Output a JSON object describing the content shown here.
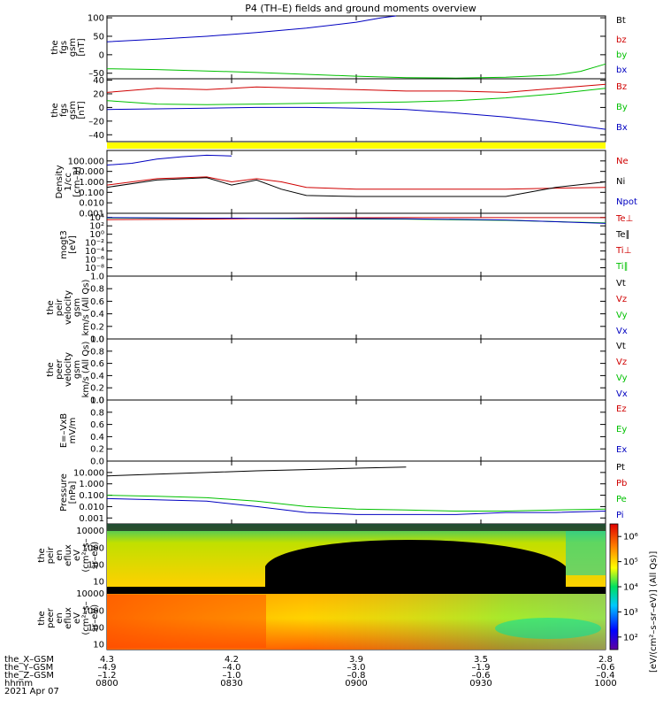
{
  "title": "P4 (TH–E) fields and ground moments overview",
  "footer": {
    "row_labels": [
      "the_X–GSM",
      "the_Y–GSM",
      "the_Z–GSM",
      "hhmm",
      "2021 Apr 07"
    ],
    "columns": [
      {
        "x": "4.3",
        "y": "–4.9",
        "z": "–1.2",
        "hhmm": "0800"
      },
      {
        "x": "4.2",
        "y": "–4.0",
        "z": "–1.0",
        "hhmm": "0830"
      },
      {
        "x": "3.9",
        "y": "–3.0",
        "z": "–0.8",
        "hhmm": "0900"
      },
      {
        "x": "3.5",
        "y": "–1.9",
        "z": "–0.6",
        "hhmm": "0930"
      },
      {
        "x": "2.8",
        "y": "–0.6",
        "z": "–0.4",
        "hhmm": "1000"
      }
    ]
  },
  "colorbar": {
    "ticks": [
      "10²",
      "10³",
      "10⁴",
      "10⁵",
      "10⁶"
    ],
    "label": "[eV/(cm²–s–sr–eV)] (All Qs)]"
  },
  "colors": {
    "black": "#000000",
    "red": "#d00000",
    "green": "#00c000",
    "blue": "#0000c0",
    "yellow": "#ffff00"
  },
  "chart_data": [
    {
      "type": "line",
      "ylabel": [
        "the",
        "fgs",
        "gsm",
        "[nT]"
      ],
      "yticks": [
        {
          "v": 100,
          "label": "100"
        },
        {
          "v": 50,
          "label": "50"
        },
        {
          "v": 0,
          "label": "0"
        },
        {
          "v": -50,
          "label": "–50"
        }
      ],
      "ylim": [
        -65,
        105
      ],
      "x": [
        "0800",
        "0830",
        "0900",
        "0930",
        "1000"
      ],
      "legend": [
        {
          "name": "Bt",
          "color": "black"
        },
        {
          "name": "bz",
          "color": "red"
        },
        {
          "name": "by",
          "color": "green"
        },
        {
          "name": "bx",
          "color": "blue"
        }
      ],
      "series": [
        {
          "name": "bx",
          "color": "blue",
          "points": [
            [
              0,
              35
            ],
            [
              0.1,
              42
            ],
            [
              0.2,
              50
            ],
            [
              0.3,
              60
            ],
            [
              0.4,
              72
            ],
            [
              0.5,
              88
            ],
            [
              0.55,
              100
            ],
            [
              0.58,
              108
            ]
          ]
        },
        {
          "name": "by",
          "color": "green",
          "points": [
            [
              0,
              -38
            ],
            [
              0.1,
              -40
            ],
            [
              0.2,
              -44
            ],
            [
              0.3,
              -48
            ],
            [
              0.4,
              -53
            ],
            [
              0.5,
              -58
            ],
            [
              0.6,
              -62
            ],
            [
              0.7,
              -63
            ],
            [
              0.8,
              -61
            ],
            [
              0.9,
              -55
            ],
            [
              0.95,
              -45
            ],
            [
              1.0,
              -25
            ]
          ]
        }
      ]
    },
    {
      "type": "line",
      "ylabel": [
        "the",
        "fgs",
        "gsm",
        "[nT]"
      ],
      "yticks": [
        {
          "v": 40,
          "label": "40"
        },
        {
          "v": 20,
          "label": "20"
        },
        {
          "v": 0,
          "label": "0"
        },
        {
          "v": -20,
          "label": "–20"
        },
        {
          "v": -40,
          "label": "–40"
        }
      ],
      "ylim": [
        -50,
        42
      ],
      "legend": [
        {
          "name": "Bz",
          "color": "red"
        },
        {
          "name": "By",
          "color": "green"
        },
        {
          "name": "Bx",
          "color": "blue"
        }
      ],
      "series": [
        {
          "name": "Bz",
          "color": "red",
          "points": [
            [
              0,
              22
            ],
            [
              0.1,
              28
            ],
            [
              0.2,
              26
            ],
            [
              0.3,
              30
            ],
            [
              0.4,
              28
            ],
            [
              0.5,
              26
            ],
            [
              0.6,
              24
            ],
            [
              0.7,
              24
            ],
            [
              0.8,
              22
            ],
            [
              0.9,
              28
            ],
            [
              1.0,
              34
            ]
          ]
        },
        {
          "name": "By",
          "color": "green",
          "points": [
            [
              0,
              10
            ],
            [
              0.1,
              5
            ],
            [
              0.2,
              4
            ],
            [
              0.3,
              5
            ],
            [
              0.4,
              6
            ],
            [
              0.5,
              7
            ],
            [
              0.6,
              8
            ],
            [
              0.7,
              10
            ],
            [
              0.8,
              14
            ],
            [
              0.9,
              20
            ],
            [
              1.0,
              28
            ]
          ]
        },
        {
          "name": "Bx",
          "color": "blue",
          "points": [
            [
              0,
              -3
            ],
            [
              0.1,
              -2
            ],
            [
              0.2,
              -1
            ],
            [
              0.3,
              0
            ],
            [
              0.4,
              0
            ],
            [
              0.5,
              -1
            ],
            [
              0.6,
              -3
            ],
            [
              0.7,
              -8
            ],
            [
              0.8,
              -14
            ],
            [
              0.9,
              -22
            ],
            [
              1.0,
              -32
            ]
          ]
        }
      ]
    },
    {
      "type": "line",
      "ylabel": [
        "Density",
        "1/cc",
        "[cm–3]"
      ],
      "yscale": "log",
      "yticks": [
        {
          "v": 100,
          "label": "100.000"
        },
        {
          "v": 10,
          "label": "10.000"
        },
        {
          "v": 1,
          "label": "1.000"
        },
        {
          "v": 0.1,
          "label": "0.100"
        },
        {
          "v": 0.01,
          "label": "0.010"
        },
        {
          "v": 0.001,
          "label": "0.001"
        }
      ],
      "ylim": [
        0.001,
        1000
      ],
      "legend": [
        {
          "name": "Ne",
          "color": "red"
        },
        {
          "name": "Ni",
          "color": "black"
        },
        {
          "name": "Npot",
          "color": "blue"
        }
      ],
      "series": [
        {
          "name": "Npot",
          "color": "blue",
          "points": [
            [
              0,
              40
            ],
            [
              0.05,
              60
            ],
            [
              0.1,
              150
            ],
            [
              0.15,
              250
            ],
            [
              0.2,
              350
            ],
            [
              0.25,
              300
            ]
          ]
        },
        {
          "name": "Ne",
          "color": "red",
          "points": [
            [
              0,
              0.5
            ],
            [
              0.1,
              2
            ],
            [
              0.2,
              3
            ],
            [
              0.25,
              1
            ],
            [
              0.3,
              2
            ],
            [
              0.35,
              1
            ],
            [
              0.4,
              0.3
            ],
            [
              0.5,
              0.2
            ],
            [
              0.6,
              0.2
            ],
            [
              0.7,
              0.2
            ],
            [
              0.8,
              0.2
            ],
            [
              0.9,
              0.25
            ],
            [
              1.0,
              0.3
            ]
          ]
        },
        {
          "name": "Ni",
          "color": "black",
          "points": [
            [
              0,
              0.3
            ],
            [
              0.1,
              1.5
            ],
            [
              0.2,
              2.5
            ],
            [
              0.25,
              0.5
            ],
            [
              0.3,
              1.5
            ],
            [
              0.35,
              0.2
            ],
            [
              0.4,
              0.05
            ],
            [
              0.5,
              0.04
            ],
            [
              0.6,
              0.04
            ],
            [
              0.7,
              0.04
            ],
            [
              0.8,
              0.04
            ],
            [
              0.9,
              0.3
            ],
            [
              1.0,
              1.0
            ]
          ]
        }
      ]
    },
    {
      "type": "line",
      "ylabel": [
        "mogt3",
        "[eV]"
      ],
      "yscale": "log",
      "yticks": [
        {
          "v": 10000,
          "label": "10⁴"
        },
        {
          "v": 100,
          "label": "10²"
        },
        {
          "v": 1,
          "label": "10⁰"
        },
        {
          "v": 0.01,
          "label": "10⁻²"
        },
        {
          "v": 0.0001,
          "label": "10⁻⁴"
        },
        {
          "v": 1e-06,
          "label": "10⁻⁶"
        },
        {
          "v": 1e-08,
          "label": "10⁻⁸"
        }
      ],
      "ylim": [
        1e-10,
        100000
      ],
      "legend": [
        {
          "name": "Te⊥",
          "color": "red"
        },
        {
          "name": "Te∥",
          "color": "black"
        },
        {
          "name": "Ti⊥",
          "color": "red"
        },
        {
          "name": "Ti∥",
          "color": "green"
        }
      ],
      "series": [
        {
          "name": "Ti∥",
          "color": "green",
          "points": [
            [
              0,
              8000
            ],
            [
              0.2,
              6000
            ],
            [
              0.4,
              5000
            ],
            [
              0.6,
              4000
            ],
            [
              0.8,
              2000
            ],
            [
              1.0,
              500
            ]
          ]
        },
        {
          "name": "Te⊥",
          "color": "red",
          "points": [
            [
              0,
              3000
            ],
            [
              0.2,
              4000
            ],
            [
              0.4,
              8000
            ],
            [
              0.6,
              9000
            ],
            [
              0.8,
              9000
            ],
            [
              1.0,
              9000
            ]
          ]
        },
        {
          "name": "Ti⊥",
          "color": "blue",
          "points": [
            [
              0,
              9000
            ],
            [
              0.2,
              7000
            ],
            [
              0.4,
              6000
            ],
            [
              0.6,
              5000
            ],
            [
              0.8,
              2500
            ],
            [
              1.0,
              400
            ]
          ]
        }
      ]
    },
    {
      "type": "line",
      "ylabel": [
        "the",
        "peir",
        "velocity",
        "gsm",
        "km/s (All Qs)"
      ],
      "yticks": [
        {
          "v": 1,
          "label": "1.0"
        },
        {
          "v": 0.8,
          "label": "0.8"
        },
        {
          "v": 0.6,
          "label": "0.6"
        },
        {
          "v": 0.4,
          "label": "0.4"
        },
        {
          "v": 0.2,
          "label": "0.2"
        },
        {
          "v": 0,
          "label": "0.0"
        }
      ],
      "ylim": [
        0,
        1
      ],
      "legend": [
        {
          "name": "Vt",
          "color": "black"
        },
        {
          "name": "Vz",
          "color": "red"
        },
        {
          "name": "Vy",
          "color": "green"
        },
        {
          "name": "Vx",
          "color": "blue"
        }
      ],
      "series": []
    },
    {
      "type": "line",
      "ylabel": [
        "the",
        "peer",
        "velocity",
        "gsm",
        "km/s (All Qs)"
      ],
      "yticks": [
        {
          "v": 1,
          "label": "1.0"
        },
        {
          "v": 0.8,
          "label": "0.8"
        },
        {
          "v": 0.6,
          "label": "0.6"
        },
        {
          "v": 0.4,
          "label": "0.4"
        },
        {
          "v": 0.2,
          "label": "0.2"
        },
        {
          "v": 0,
          "label": "0.0"
        }
      ],
      "ylim": [
        0,
        1
      ],
      "legend": [
        {
          "name": "Vt",
          "color": "black"
        },
        {
          "name": "Vz",
          "color": "red"
        },
        {
          "name": "Vy",
          "color": "green"
        },
        {
          "name": "Vx",
          "color": "blue"
        }
      ],
      "series": []
    },
    {
      "type": "line",
      "ylabel": [
        "E=–VxB",
        "mV/m"
      ],
      "yticks": [
        {
          "v": 1,
          "label": "1.0"
        },
        {
          "v": 0.8,
          "label": "0.8"
        },
        {
          "v": 0.6,
          "label": "0.6"
        },
        {
          "v": 0.4,
          "label": "0.4"
        },
        {
          "v": 0.2,
          "label": "0.2"
        },
        {
          "v": 0,
          "label": "0.0"
        }
      ],
      "ylim": [
        0,
        1
      ],
      "legend": [
        {
          "name": "Ez",
          "color": "red"
        },
        {
          "name": "Ey",
          "color": "green"
        },
        {
          "name": "Ex",
          "color": "blue"
        }
      ],
      "series": []
    },
    {
      "type": "line",
      "ylabel": [
        "Pressure",
        "[nPa]"
      ],
      "yscale": "log",
      "yticks": [
        {
          "v": 10,
          "label": "10.000"
        },
        {
          "v": 1,
          "label": "1.000"
        },
        {
          "v": 0.1,
          "label": "0.100"
        },
        {
          "v": 0.01,
          "label": "0.010"
        },
        {
          "v": 0.001,
          "label": "0.001"
        }
      ],
      "ylim": [
        0.0003,
        100
      ],
      "legend": [
        {
          "name": "Pt",
          "color": "black"
        },
        {
          "name": "Pb",
          "color": "red"
        },
        {
          "name": "Pe",
          "color": "green"
        },
        {
          "name": "Pi",
          "color": "blue"
        }
      ],
      "series": [
        {
          "name": "Pt",
          "color": "black",
          "points": [
            [
              0,
              5
            ],
            [
              0.1,
              7
            ],
            [
              0.2,
              10
            ],
            [
              0.3,
              14
            ],
            [
              0.4,
              18
            ],
            [
              0.5,
              24
            ],
            [
              0.6,
              30
            ]
          ]
        },
        {
          "name": "Pe",
          "color": "green",
          "points": [
            [
              0,
              0.1
            ],
            [
              0.1,
              0.08
            ],
            [
              0.2,
              0.06
            ],
            [
              0.3,
              0.03
            ],
            [
              0.4,
              0.01
            ],
            [
              0.5,
              0.006
            ],
            [
              0.6,
              0.005
            ],
            [
              0.7,
              0.004
            ],
            [
              0.8,
              0.004
            ],
            [
              0.9,
              0.005
            ],
            [
              1.0,
              0.006
            ]
          ]
        },
        {
          "name": "Pi",
          "color": "blue",
          "points": [
            [
              0,
              0.05
            ],
            [
              0.1,
              0.04
            ],
            [
              0.2,
              0.03
            ],
            [
              0.3,
              0.01
            ],
            [
              0.4,
              0.003
            ],
            [
              0.5,
              0.002
            ],
            [
              0.6,
              0.002
            ],
            [
              0.7,
              0.002
            ],
            [
              0.8,
              0.003
            ],
            [
              0.9,
              0.003
            ],
            [
              1.0,
              0.004
            ]
          ]
        }
      ]
    },
    {
      "type": "heatmap",
      "ylabel": [
        "the",
        "peir",
        "en",
        "eflux",
        "eV",
        "(cm²–s–",
        "sr–eV)"
      ],
      "yscale": "log",
      "yticks": [
        {
          "v": 10000,
          "label": "10000"
        },
        {
          "v": 1000,
          "label": "1000"
        },
        {
          "v": 100,
          "label": "100"
        },
        {
          "v": 10,
          "label": "10"
        }
      ],
      "ylim": [
        5,
        25000
      ]
    },
    {
      "type": "heatmap",
      "ylabel": [
        "the",
        "peer",
        "en",
        "eflux",
        "eV",
        "(cm²–s–",
        "sr–eV)"
      ],
      "yscale": "log",
      "yticks": [
        {
          "v": 10000,
          "label": "10000"
        },
        {
          "v": 1000,
          "label": "1000"
        },
        {
          "v": 100,
          "label": "100"
        },
        {
          "v": 10,
          "label": "10"
        }
      ],
      "ylim": [
        5,
        25000
      ]
    }
  ]
}
